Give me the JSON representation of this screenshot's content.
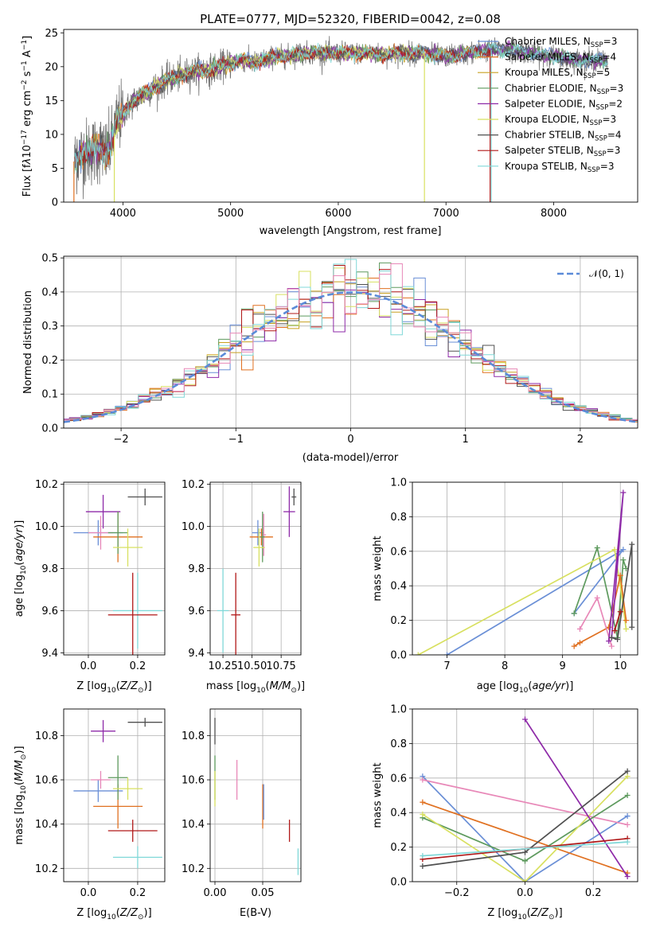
{
  "colors": {
    "chabrier_miles": "#6a8fd6",
    "salpeter_miles": "#e07020",
    "kroupa_miles": "#c8a020",
    "chabrier_elodie": "#5e9a5e",
    "salpeter_elodie": "#8e2aa8",
    "kroupa_elodie": "#d8e060",
    "chabrier_stelib": "#505050",
    "salpeter_stelib": "#b01818",
    "kroupa_stelib": "#80d8d8",
    "pink": "#e888b8",
    "grid": "#b0b0b0",
    "gauss": "#5b8bd8"
  },
  "chart_data": [
    {
      "id": "spectrum",
      "type": "line",
      "title": "PLATE=0777, MJD=52320, FIBERID=0042, z=0.08",
      "xlabel": "wavelength [Angstrom, rest frame]",
      "ylabel": "Flux [f_λ10^-17 erg cm^-2 s^-1 A^-1]",
      "xlim": [
        3450,
        8780
      ],
      "ylim": [
        0,
        25.5
      ],
      "xticks": [
        "4000",
        "5000",
        "6000",
        "7000",
        "8000"
      ],
      "xtick_values": [
        4000,
        5000,
        6000,
        7000,
        8000
      ],
      "yticks": [
        "0",
        "5",
        "10",
        "15",
        "20",
        "25"
      ],
      "ytick_values": [
        0,
        5,
        10,
        15,
        20,
        25
      ],
      "grid": false,
      "legend_position": "top-right",
      "legend": [
        {
          "label": "Chabrier MILES, N",
          "sub": "SSP",
          "tail": "=3",
          "color": "#6a8fd6"
        },
        {
          "label": "Salpeter MILES, N",
          "sub": "SSP",
          "tail": "=4",
          "color": "#e07020"
        },
        {
          "label": "Kroupa MILES, N",
          "sub": "SSP",
          "tail": "=5",
          "color": "#c8a020"
        },
        {
          "label": "Chabrier ELODIE, N",
          "sub": "SSP",
          "tail": "=3",
          "color": "#5e9a5e"
        },
        {
          "label": "Salpeter ELODIE, N",
          "sub": "SSP",
          "tail": "=2",
          "color": "#8e2aa8"
        },
        {
          "label": "Kroupa ELODIE, N",
          "sub": "SSP",
          "tail": "=3",
          "color": "#d8e060"
        },
        {
          "label": "Chabrier STELIB, N",
          "sub": "SSP",
          "tail": "=4",
          "color": "#505050"
        },
        {
          "label": "Salpeter STELIB, N",
          "sub": "SSP",
          "tail": "=3",
          "color": "#b01818"
        },
        {
          "label": "Kroupa STELIB, N",
          "sub": "SSP",
          "tail": "=3",
          "color": "#80d8d8"
        }
      ],
      "continuum_x": [
        3550,
        3600,
        3700,
        3800,
        3850,
        3900,
        3950,
        4000,
        4100,
        4200,
        4300,
        4400,
        4500,
        4600,
        4700,
        4800,
        4900,
        5000,
        5100,
        5200,
        5300,
        5400,
        5500,
        5600,
        5700,
        5800,
        5900,
        6000,
        6200,
        6400,
        6600,
        6800,
        7000,
        7200,
        7400,
        7600,
        7800,
        8000,
        8200,
        8400,
        8500
      ],
      "continuum_y": [
        6,
        7,
        7.5,
        8,
        7,
        9,
        12,
        13,
        15,
        16,
        17,
        18,
        18.5,
        19,
        19.5,
        19.5,
        20,
        20.5,
        21,
        20.5,
        21,
        21.5,
        21.5,
        21.8,
        22,
        22,
        22,
        22,
        22,
        21.8,
        22,
        22,
        21.5,
        22,
        22.5,
        22.5,
        22,
        21.5,
        21,
        21,
        20.8
      ],
      "cutoffs": [
        {
          "series": "Kroupa ELODIE",
          "x": 6800,
          "color": "#d8e060"
        },
        {
          "series": "Salpeter STELIB",
          "x": 7410,
          "color": "#b01818"
        },
        {
          "series": "Kroupa STELIB",
          "x": 7420,
          "color": "#80d8d8"
        },
        {
          "series": "Salpeter MILES",
          "x": 3545,
          "color": "#e07020"
        },
        {
          "series": "Kroupa ELODIE",
          "x": 3920,
          "color": "#d8e060"
        }
      ]
    },
    {
      "id": "residuals",
      "type": "line",
      "xlabel": "(data-model)/error",
      "ylabel": "Normed distribution",
      "xlim": [
        -2.5,
        2.5
      ],
      "ylim": [
        0,
        0.505
      ],
      "xticks": [
        "−2",
        "−1",
        "0",
        "1",
        "2"
      ],
      "xtick_values": [
        -2,
        -1,
        0,
        1,
        2
      ],
      "yticks": [
        "0.0",
        "0.1",
        "0.2",
        "0.3",
        "0.4",
        "0.5"
      ],
      "ytick_values": [
        0,
        0.1,
        0.2,
        0.3,
        0.4,
        0.5
      ],
      "grid": true,
      "legend_position": "top-right",
      "legend_label": "𝒩(0, 1)",
      "bin_width": 0.1,
      "series_colors": [
        "#6a8fd6",
        "#e07020",
        "#c8a020",
        "#5e9a5e",
        "#8e2aa8",
        "#d8e060",
        "#505050",
        "#b01818",
        "#80d8d8",
        "#e888b8"
      ]
    },
    {
      "id": "age_vs_Z",
      "type": "scatter",
      "xlabel": "Z [log10(Z/Z⊙)]",
      "ylabel": "age  [log10(age/yr)]",
      "xlim": [
        -0.1,
        0.31
      ],
      "ylim": [
        9.39,
        10.21
      ],
      "xticks": [
        "0.0",
        "0.2"
      ],
      "xtick_values": [
        0.0,
        0.2
      ],
      "yticks": [
        "9.4",
        "9.6",
        "9.8",
        "10.0",
        "10.2"
      ],
      "ytick_values": [
        9.4,
        9.6,
        9.8,
        10.0,
        10.2
      ],
      "grid": true,
      "points": [
        {
          "x": 0.23,
          "y": 10.14,
          "xerr": 0.07,
          "yerr": 0.04,
          "color": "#505050"
        },
        {
          "x": 0.06,
          "y": 10.07,
          "xerr": 0.07,
          "yerr": 0.08,
          "color": "#8e2aa8"
        },
        {
          "x": 0.04,
          "y": 9.97,
          "xerr": 0.1,
          "yerr": 0.06,
          "color": "#6a8fd6"
        },
        {
          "x": 0.05,
          "y": 9.97,
          "xerr": 0.05,
          "yerr": 0.08,
          "color": "#e888b8"
        },
        {
          "x": 0.12,
          "y": 9.95,
          "xerr": 0.1,
          "yerr": 0.12,
          "color": "#e07020"
        },
        {
          "x": 0.12,
          "y": 9.97,
          "xerr": 0.04,
          "yerr": 0.1,
          "color": "#5e9a5e"
        },
        {
          "x": 0.16,
          "y": 9.9,
          "xerr": 0.06,
          "yerr": 0.09,
          "color": "#d8e060"
        },
        {
          "x": 0.2,
          "y": 9.6,
          "xerr": 0.1,
          "yerr": 0.18,
          "color": "#80d8d8"
        },
        {
          "x": 0.18,
          "y": 9.58,
          "xerr": 0.1,
          "yerr": 0.2,
          "color": "#b01818"
        }
      ]
    },
    {
      "id": "age_vs_mass",
      "type": "scatter",
      "xlabel": "mass [log10(M/M⊙)]",
      "xlim": [
        10.14,
        10.92
      ],
      "ylim": [
        9.39,
        10.21
      ],
      "xticks": [
        "10.25",
        "10.50",
        "10.75"
      ],
      "xtick_values": [
        10.25,
        10.5,
        10.75
      ],
      "yticks": [
        "9.4",
        "9.6",
        "9.8",
        "10.0",
        "10.2"
      ],
      "ytick_values": [
        9.4,
        9.6,
        9.8,
        10.0,
        10.2
      ],
      "grid": true,
      "points": [
        {
          "x": 10.86,
          "y": 10.14,
          "xerr": 0.02,
          "yerr": 0.04,
          "color": "#505050"
        },
        {
          "x": 10.82,
          "y": 10.07,
          "xerr": 0.05,
          "yerr": 0.12,
          "color": "#8e2aa8"
        },
        {
          "x": 10.55,
          "y": 9.97,
          "xerr": 0.05,
          "yerr": 0.06,
          "color": "#6a8fd6"
        },
        {
          "x": 10.6,
          "y": 9.96,
          "xerr": 0.02,
          "yerr": 0.1,
          "color": "#e888b8"
        },
        {
          "x": 10.58,
          "y": 9.95,
          "xerr": 0.1,
          "yerr": 0.04,
          "color": "#e07020"
        },
        {
          "x": 10.59,
          "y": 9.95,
          "xerr": 0.02,
          "yerr": 0.12,
          "color": "#5e9a5e"
        },
        {
          "x": 10.56,
          "y": 9.9,
          "xerr": 0.05,
          "yerr": 0.09,
          "color": "#d8e060"
        },
        {
          "x": 10.25,
          "y": 9.6,
          "xerr": 0.05,
          "yerr": 0.2,
          "color": "#80d8d8"
        },
        {
          "x": 10.36,
          "y": 9.58,
          "xerr": 0.04,
          "yerr": 0.2,
          "color": "#b01818"
        }
      ]
    },
    {
      "id": "weight_vs_age",
      "type": "line",
      "xlabel": "age  [log10(age/yr)]",
      "ylabel": "mass weight",
      "xlim": [
        6.4,
        10.3
      ],
      "ylim": [
        0,
        1.0
      ],
      "xticks": [
        "7",
        "8",
        "9",
        "10"
      ],
      "xtick_values": [
        7,
        8,
        9,
        10
      ],
      "yticks": [
        "0.0",
        "0.2",
        "0.4",
        "0.6",
        "0.8",
        "1.0"
      ],
      "ytick_values": [
        0,
        0.2,
        0.4,
        0.6,
        0.8,
        1.0
      ],
      "grid": true,
      "series": [
        {
          "color": "#6a8fd6",
          "x": [
            7.0,
            10.05,
            9.2
          ],
          "y": [
            0.0,
            0.61,
            0.24
          ]
        },
        {
          "color": "#5e9a5e",
          "x": [
            9.2,
            9.6,
            9.95,
            10.05,
            10.1
          ],
          "y": [
            0.24,
            0.62,
            0.1,
            0.55,
            0.5
          ]
        },
        {
          "color": "#d8e060",
          "x": [
            6.5,
            9.9,
            10.0,
            10.1
          ],
          "y": [
            0.0,
            0.61,
            0.4,
            0.15
          ]
        },
        {
          "color": "#e07020",
          "x": [
            9.2,
            9.3,
            9.8,
            10.0,
            10.1
          ],
          "y": [
            0.05,
            0.07,
            0.16,
            0.46,
            0.2
          ]
        },
        {
          "color": "#e888b8",
          "x": [
            9.3,
            9.6,
            9.85
          ],
          "y": [
            0.15,
            0.33,
            0.05
          ]
        },
        {
          "color": "#8e2aa8",
          "x": [
            9.8,
            10.05,
            9.85
          ],
          "y": [
            0.08,
            0.94,
            0.1
          ]
        },
        {
          "color": "#505050",
          "x": [
            9.85,
            9.95,
            10.2,
            10.2
          ],
          "y": [
            0.1,
            0.09,
            0.64,
            0.16
          ]
        },
        {
          "color": "#b01818",
          "x": [
            9.9,
            10.0
          ],
          "y": [
            0.14,
            0.25
          ]
        }
      ]
    },
    {
      "id": "mass_vs_Z",
      "type": "scatter",
      "xlabel": "Z [log10(Z/Z⊙)]",
      "ylabel": "mass [log10(M/M⊙)]",
      "xlim": [
        -0.1,
        0.31
      ],
      "ylim": [
        10.14,
        10.92
      ],
      "xticks": [
        "0.0",
        "0.2"
      ],
      "xtick_values": [
        0.0,
        0.2
      ],
      "yticks": [
        "10.2",
        "10.4",
        "10.6",
        "10.8"
      ],
      "ytick_values": [
        10.2,
        10.4,
        10.6,
        10.8
      ],
      "grid": true,
      "points": [
        {
          "x": 0.23,
          "y": 10.86,
          "xerr": 0.07,
          "yerr": 0.02,
          "color": "#505050"
        },
        {
          "x": 0.06,
          "y": 10.82,
          "xerr": 0.05,
          "yerr": 0.05,
          "color": "#8e2aa8"
        },
        {
          "x": 0.04,
          "y": 10.55,
          "xerr": 0.1,
          "yerr": 0.05,
          "color": "#6a8fd6"
        },
        {
          "x": 0.05,
          "y": 10.6,
          "xerr": 0.04,
          "yerr": 0.04,
          "color": "#e888b8"
        },
        {
          "x": 0.12,
          "y": 10.48,
          "xerr": 0.1,
          "yerr": 0.1,
          "color": "#e07020"
        },
        {
          "x": 0.12,
          "y": 10.61,
          "xerr": 0.04,
          "yerr": 0.1,
          "color": "#5e9a5e"
        },
        {
          "x": 0.16,
          "y": 10.56,
          "xerr": 0.06,
          "yerr": 0.05,
          "color": "#d8e060"
        },
        {
          "x": 0.2,
          "y": 10.25,
          "xerr": 0.1,
          "yerr": 0.05,
          "color": "#80d8d8"
        },
        {
          "x": 0.18,
          "y": 10.37,
          "xerr": 0.1,
          "yerr": 0.05,
          "color": "#b01818"
        }
      ]
    },
    {
      "id": "mass_vs_ebv",
      "type": "scatter",
      "xlabel": "E(B-V)",
      "xlim": [
        -0.005,
        0.09
      ],
      "ylim": [
        10.14,
        10.92
      ],
      "xticks": [
        "0.00",
        "0.05"
      ],
      "xtick_values": [
        0.0,
        0.05
      ],
      "yticks": [
        "10.2",
        "10.4",
        "10.6",
        "10.8"
      ],
      "ytick_values": [
        10.2,
        10.4,
        10.6,
        10.8
      ],
      "grid": true,
      "points": [
        {
          "x": 0.0,
          "y": 10.82,
          "xerr": 0,
          "yerr": 0.06,
          "color": "#505050"
        },
        {
          "x": 0.0,
          "y": 10.61,
          "xerr": 0,
          "yerr": 0.1,
          "color": "#5e9a5e"
        },
        {
          "x": 0.0,
          "y": 10.56,
          "xerr": 0,
          "yerr": 0.08,
          "color": "#d8e060"
        },
        {
          "x": 0.023,
          "y": 10.6,
          "xerr": 0,
          "yerr": 0.09,
          "color": "#e888b8"
        },
        {
          "x": 0.05,
          "y": 10.48,
          "xerr": 0,
          "yerr": 0.1,
          "color": "#e07020"
        },
        {
          "x": 0.051,
          "y": 10.5,
          "xerr": 0,
          "yerr": 0.08,
          "color": "#6a8fd6"
        },
        {
          "x": 0.078,
          "y": 10.37,
          "xerr": 0,
          "yerr": 0.05,
          "color": "#b01818"
        },
        {
          "x": 0.087,
          "y": 10.23,
          "xerr": 0,
          "yerr": 0.06,
          "color": "#80d8d8"
        }
      ]
    },
    {
      "id": "weight_vs_Z",
      "type": "line",
      "xlabel": "Z [log10(Z/Z⊙)]",
      "ylabel": "mass weight",
      "xlim": [
        -0.33,
        0.33
      ],
      "ylim": [
        0,
        1.0
      ],
      "xticks": [
        "−0.2",
        "0.0",
        "0.2"
      ],
      "xtick_values": [
        -0.2,
        0.0,
        0.2
      ],
      "yticks": [
        "0.0",
        "0.2",
        "0.4",
        "0.6",
        "0.8",
        "1.0"
      ],
      "ytick_values": [
        0,
        0.2,
        0.4,
        0.6,
        0.8,
        1.0
      ],
      "grid": true,
      "series": [
        {
          "color": "#6a8fd6",
          "x": [
            -0.3,
            0.0,
            0.3
          ],
          "y": [
            0.61,
            0.0,
            0.38
          ]
        },
        {
          "color": "#e07020",
          "x": [
            -0.3,
            0.3
          ],
          "y": [
            0.46,
            0.05
          ]
        },
        {
          "color": "#e888b8",
          "x": [
            -0.3,
            0.3
          ],
          "y": [
            0.59,
            0.33
          ]
        },
        {
          "color": "#5e9a5e",
          "x": [
            -0.3,
            0.0,
            0.3
          ],
          "y": [
            0.37,
            0.12,
            0.5
          ]
        },
        {
          "color": "#d8e060",
          "x": [
            -0.3,
            0.0,
            0.3
          ],
          "y": [
            0.39,
            0.0,
            0.61
          ]
        },
        {
          "color": "#8e2aa8",
          "x": [
            0.0,
            0.3
          ],
          "y": [
            0.94,
            0.03
          ]
        },
        {
          "color": "#505050",
          "x": [
            -0.3,
            0.0,
            0.3
          ],
          "y": [
            0.09,
            0.17,
            0.64
          ]
        },
        {
          "color": "#b01818",
          "x": [
            -0.3,
            0.3
          ],
          "y": [
            0.13,
            0.25
          ]
        },
        {
          "color": "#80d8d8",
          "x": [
            -0.3,
            0.3
          ],
          "y": [
            0.15,
            0.23
          ]
        }
      ]
    }
  ]
}
